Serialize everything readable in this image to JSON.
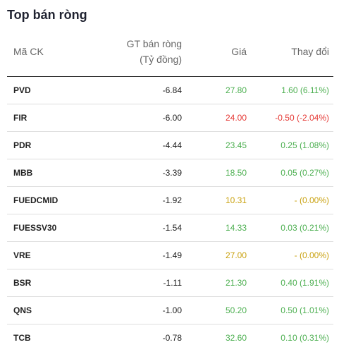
{
  "title": "Top bán ròng",
  "headers": {
    "symbol": "Mã CK",
    "value_line1": "GT bán ròng",
    "value_line2": "(Tỷ đồng)",
    "price": "Giá",
    "change": "Thay đổi"
  },
  "colors": {
    "up": "#4caf50",
    "down": "#e53935",
    "reference": "#c9a10e"
  },
  "rows": [
    {
      "symbol": "PVD",
      "value": "-6.84",
      "price": "27.80",
      "change": "1.60 (6.11%)",
      "status": "up"
    },
    {
      "symbol": "FIR",
      "value": "-6.00",
      "price": "24.00",
      "change": "-0.50 (-2.04%)",
      "status": "down"
    },
    {
      "symbol": "PDR",
      "value": "-4.44",
      "price": "23.45",
      "change": "0.25 (1.08%)",
      "status": "up"
    },
    {
      "symbol": "MBB",
      "value": "-3.39",
      "price": "18.50",
      "change": "0.05 (0.27%)",
      "status": "up"
    },
    {
      "symbol": "FUEDCMID",
      "value": "-1.92",
      "price": "10.31",
      "change": "- (0.00%)",
      "status": "ref"
    },
    {
      "symbol": "FUESSV30",
      "value": "-1.54",
      "price": "14.33",
      "change": "0.03 (0.21%)",
      "status": "up"
    },
    {
      "symbol": "VRE",
      "value": "-1.49",
      "price": "27.00",
      "change": "- (0.00%)",
      "status": "ref"
    },
    {
      "symbol": "BSR",
      "value": "-1.11",
      "price": "21.30",
      "change": "0.40 (1.91%)",
      "status": "up"
    },
    {
      "symbol": "QNS",
      "value": "-1.00",
      "price": "50.20",
      "change": "0.50 (1.01%)",
      "status": "up"
    },
    {
      "symbol": "TCB",
      "value": "-0.78",
      "price": "32.60",
      "change": "0.10 (0.31%)",
      "status": "up"
    }
  ]
}
